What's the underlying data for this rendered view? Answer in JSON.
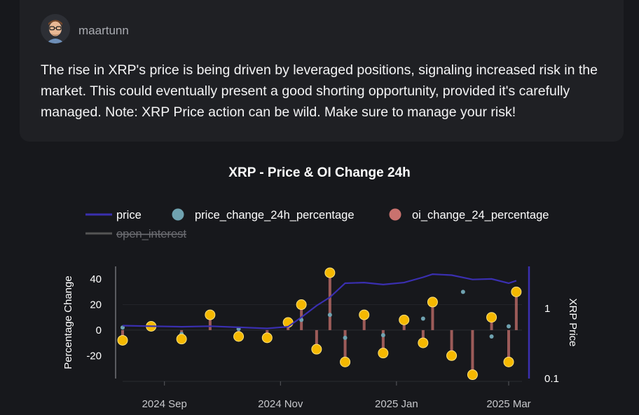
{
  "post": {
    "username": "maartunn",
    "text": "The rise in XRP's price is being driven by leveraged positions, signaling increased risk in the market. This could eventually present a good shorting opportunity, provided it's carefully managed. Note: XRP Price action can be wild. Make sure to manage your risk!"
  },
  "chart_data": {
    "type": "line",
    "title": "XRP - Price & OI Change 24h",
    "ylabel": "Percentage Change",
    "y2label": "XRP Price",
    "ylim": [
      -38,
      50
    ],
    "y2_scale": "log",
    "y2lim": [
      0.1,
      4
    ],
    "yticks": [
      "40",
      "20",
      "0",
      "-20"
    ],
    "y2ticks": [
      "1",
      "0.1"
    ],
    "xticks": [
      "2024 Sep",
      "2024 Nov",
      "2025 Jan",
      "2025 Mar"
    ],
    "legend": {
      "placement": "top",
      "items": [
        {
          "label": "price",
          "color": "#3a2fb0",
          "shape": "line",
          "hidden": false
        },
        {
          "label": "price_change_24h_percentage",
          "color": "#6fa2b0",
          "shape": "circle",
          "hidden": false
        },
        {
          "label": "oi_change_24_percentage",
          "color": "#c9726e",
          "shape": "circle",
          "hidden": false
        },
        {
          "label": "open_interest",
          "color": "#555555",
          "shape": "line",
          "hidden": true
        }
      ]
    },
    "marker_color": "#f5b800",
    "series": [
      {
        "name": "price",
        "x": [
          "2024-08-10",
          "2024-08-25",
          "2024-09-10",
          "2024-09-25",
          "2024-10-10",
          "2024-10-25",
          "2024-11-05",
          "2024-11-12",
          "2024-11-20",
          "2024-11-27",
          "2024-12-05",
          "2024-12-15",
          "2024-12-25",
          "2025-01-05",
          "2025-01-15",
          "2025-01-20",
          "2025-01-30",
          "2025-02-10",
          "2025-02-20",
          "2025-03-01",
          "2025-03-05"
        ],
        "values": [
          0.57,
          0.56,
          0.55,
          0.56,
          0.54,
          0.52,
          0.55,
          0.75,
          1.1,
          1.45,
          2.3,
          2.35,
          2.2,
          2.35,
          2.8,
          3.1,
          3.0,
          2.6,
          2.65,
          2.3,
          2.5
        ]
      },
      {
        "name": "oi_change_24_percentage",
        "x": [
          "2024-08-10",
          "2024-08-25",
          "2024-09-10",
          "2024-09-25",
          "2024-10-10",
          "2024-10-25",
          "2024-11-05",
          "2024-11-12",
          "2024-11-20",
          "2024-11-27",
          "2024-12-05",
          "2024-12-15",
          "2024-12-25",
          "2025-01-05",
          "2025-01-15",
          "2025-01-20",
          "2025-01-30",
          "2025-02-10",
          "2025-02-20",
          "2025-03-01",
          "2025-03-05"
        ],
        "values": [
          -8,
          3,
          -7,
          12,
          -5,
          -6,
          6,
          20,
          -15,
          45,
          -25,
          12,
          -18,
          8,
          -10,
          22,
          -20,
          -35,
          10,
          -25,
          30
        ]
      },
      {
        "name": "price_change_24h_percentage",
        "x": [
          "2024-08-10",
          "2024-09-10",
          "2024-10-10",
          "2024-11-12",
          "2024-11-27",
          "2024-12-05",
          "2024-12-25",
          "2025-01-15",
          "2025-02-05",
          "2025-02-20",
          "2025-03-01"
        ],
        "values": [
          2,
          -3,
          1,
          8,
          12,
          -6,
          -4,
          9,
          30,
          -5,
          3
        ]
      }
    ]
  }
}
